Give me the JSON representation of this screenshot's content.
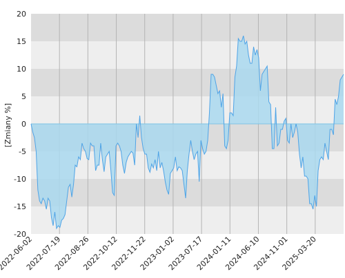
{
  "chart_data": {
    "type": "area",
    "ylabel": "[Zmiany %]",
    "ylim": [
      -20,
      20
    ],
    "yticks": [
      -20,
      -15,
      -10,
      -5,
      0,
      5,
      10,
      15,
      20
    ],
    "x_tick_labels": [
      "2022-06-02",
      "2022-07-19",
      "2022-08-26",
      "2022-10-12",
      "2022-11-22",
      "2023-01-02",
      "2023-07-17",
      "2024-01-11",
      "2024-06-10",
      "2024-11-01",
      "2025-03-20"
    ],
    "grid": true,
    "bands": {
      "dark": "#dcdcdc",
      "light": "#eeeeee"
    },
    "colors": {
      "line": "#4ea3e6",
      "fill": "#a9d8ef",
      "zero_line": "#7fc4e4"
    },
    "series": [
      {
        "values": [
          0,
          -1.5,
          -2.5,
          -5,
          -12,
          -14,
          -14.5,
          -13.5,
          -14,
          -15.5,
          -13.5,
          -14,
          -17,
          -18.5,
          -16,
          -19,
          -18.5,
          -18.8,
          -17.5,
          -17.2,
          -16.5,
          -14,
          -11.5,
          -11,
          -13.3,
          -11,
          -7.5,
          -7.8,
          -6,
          -6.5,
          -3.5,
          -4.5,
          -5,
          -6.3,
          -6.5,
          -3.5,
          -4,
          -4,
          -8.5,
          -7.5,
          -7.5,
          -3.5,
          -6.5,
          -8.7,
          -6,
          -5.5,
          -5,
          -8.5,
          -12.5,
          -13,
          -4,
          -3.5,
          -4,
          -5,
          -7.5,
          -9,
          -7,
          -6,
          -5.5,
          -5,
          -5.3,
          -7.5,
          0,
          -2.5,
          1.5,
          -2.5,
          -4.5,
          -5.5,
          -5.5,
          -8,
          -8.8,
          -7.3,
          -8,
          -6.5,
          -8.5,
          -5,
          -8,
          -7,
          -8.5,
          -10.5,
          -12,
          -12.8,
          -9,
          -8.5,
          -8,
          -6,
          -8.5,
          -7.8,
          -8,
          -8.5,
          -11,
          -13.5,
          -8.5,
          -5.5,
          -3,
          -5,
          -6.5,
          -5.5,
          -5,
          -10.5,
          -3,
          -4.5,
          -5.5,
          -5,
          -3,
          2,
          9,
          9,
          8.5,
          7,
          5.5,
          6,
          3,
          5.5,
          -4,
          -4.5,
          -3,
          2,
          2,
          1.5,
          8.5,
          10.5,
          15.5,
          15,
          15,
          16,
          14.5,
          15,
          12.5,
          11,
          11,
          14,
          12.5,
          13.5,
          12,
          6,
          9,
          9.5,
          10,
          10.5,
          4,
          3.5,
          -4.5,
          -4.5,
          3,
          -4,
          -3.5,
          -1,
          -1,
          0.5,
          1,
          -3,
          -3.5,
          0,
          -2.5,
          -1.5,
          0,
          -1.5,
          -5.5,
          -8,
          -6,
          -9.5,
          -9.5,
          -10,
          -14.5,
          -14.5,
          -15.5,
          -13,
          -15,
          -8.5,
          -6.5,
          -6,
          -6.5,
          -3.5,
          -5,
          -6.5,
          -1,
          -1,
          -2,
          4.5,
          3.5,
          5,
          8,
          8.5,
          9
        ]
      }
    ]
  }
}
